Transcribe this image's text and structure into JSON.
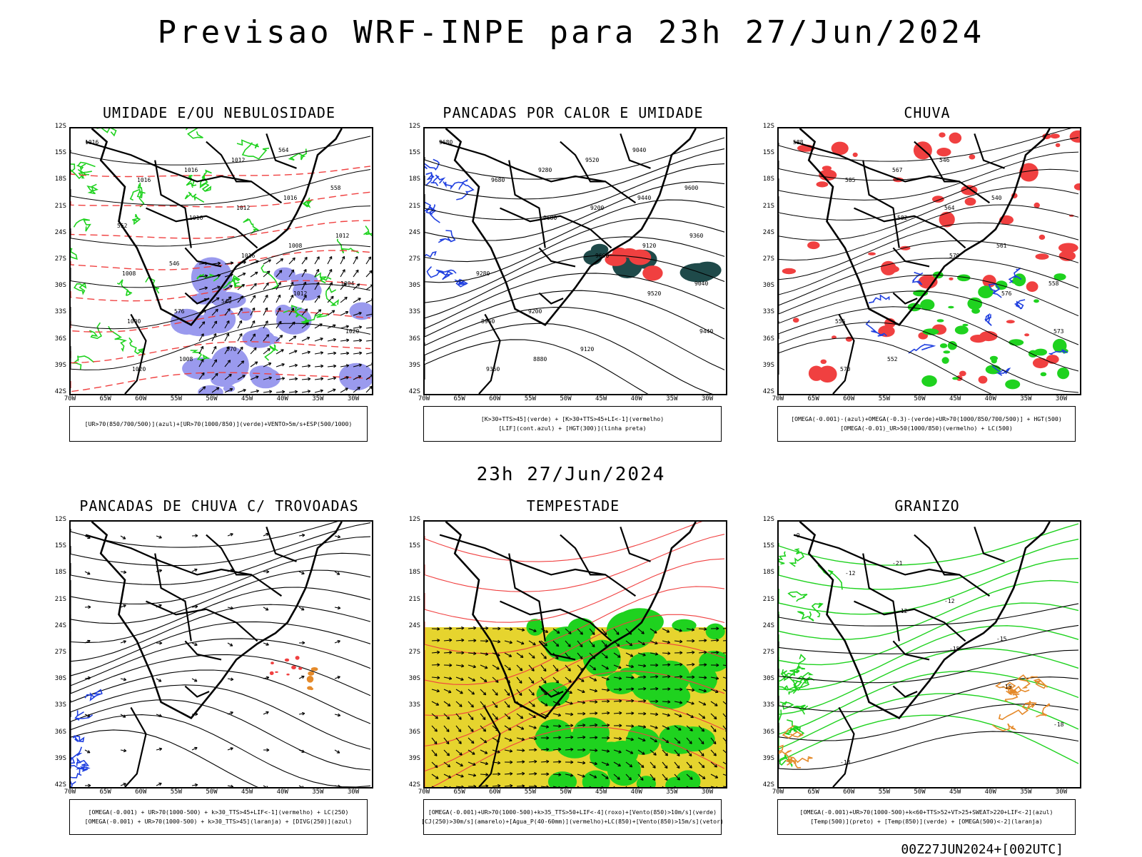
{
  "page": {
    "title": "Previsao WRF-INPE  para 23h 27/Jun/2024",
    "mid_time": "23h 27/Jun/2024",
    "footer": "00Z27JUN2024+[002UTC]"
  },
  "axes": {
    "lat_labels": [
      "12S",
      "15S",
      "18S",
      "21S",
      "24S",
      "27S",
      "30S",
      "33S",
      "36S",
      "39S",
      "42S"
    ],
    "lon_labels": [
      "70W",
      "65W",
      "60W",
      "55W",
      "50W",
      "45W",
      "40W",
      "35W",
      "30W"
    ]
  },
  "panels": [
    {
      "title": "UMIDADE E/OU NEBULOSIDADE",
      "legend": [
        "[UR>70(850/700/500)](azul)+[UR>70(1000/850)](verde)+VENTO>5m/s+ESP(500/1000)"
      ],
      "contour_labels": [
        "1016",
        "1016",
        "1016",
        "1016",
        "1012",
        "1020",
        "1020",
        "1016",
        "1012",
        "1008",
        "1004",
        "1000",
        "1008",
        "1012",
        "1016",
        "1012",
        "1008",
        "576",
        "570",
        "564",
        "558",
        "552",
        "546",
        "540"
      ]
    },
    {
      "title": "PANCADAS POR CALOR E UMIDADE",
      "legend": [
        "[K>30+TTS>45](verde) + [K>30+TTS>45+LI<-1](vermelho)",
        "[LIF](cont.azul) + [HGT(300)](linha preta)"
      ],
      "contour_labels": [
        "9680",
        "9680",
        "9680",
        "9600",
        "9520",
        "9440",
        "9360",
        "9280",
        "9200",
        "9120",
        "9040",
        "8960",
        "8880",
        "9520",
        "9440",
        "9360",
        "9280",
        "9200",
        "9120",
        "9040",
        "9600"
      ]
    },
    {
      "title": "CHUVA",
      "legend": [
        "[OMEGA(-0.001)-(azul)+OMEGA(-0.3)-(verde)+UR>70(1000/850/700/500)] + HGT(500)",
        "[OMEGA(-0.01)_UR>50(1000/850)(vermelho) + LC(500)"
      ],
      "contour_labels": [
        "588",
        "585",
        "582",
        "579",
        "576",
        "573",
        "570",
        "567",
        "564",
        "561",
        "558",
        "555",
        "552",
        "546",
        "540"
      ]
    },
    {
      "title": "PANCADAS DE CHUVA C/ TROVOADAS",
      "legend": [
        "[OMEGA(-0.001) + UR>70(1000-500) + k>30_TTS>45+LIF<-1](vermelho) + LC(250)",
        "[OMEGA(-0.001) + UR>70(1000-500) + k>30_TTS>45](laranja) + [DIVG(250)](azul)"
      ],
      "contour_labels": []
    },
    {
      "title": "TEMPESTADE",
      "legend": [
        "[OMEGA(-0.001)+UR>70(1000-500)+k>35_TTS>50+LIF<-4](roxo)+[Vento(850)>10m/s](verde)",
        "[CJ(250)>30m/s](amarelo)+[Agua_P(40-60mm)](vermelho)+LC(850)+[Vento(850)>15m/s](vetor)"
      ],
      "contour_labels": []
    },
    {
      "title": "GRANIZO",
      "legend": [
        "[OMEGA(-0.001)+UR>70(1000-500)+k<60+TTS>52+VT>25+SWEAT>220+LIF<-2](azul)",
        "[Temp(500)](preto) + [Temp(850)](verde) + [OMEGA(500)<-2](laranja)"
      ],
      "contour_labels": [
        "-9",
        "-12",
        "-12",
        "-15",
        "-15",
        "-18",
        "-18",
        "-21",
        "-12",
        "-15"
      ]
    }
  ],
  "colors": {
    "humidity_blue": "#9a9aee",
    "green": "#1fd21f",
    "red": "#f04040",
    "yellow": "#e6d42e",
    "dark_teal": "#1f4a4a",
    "orange": "#e58a2a",
    "blue_contour": "#2040e0"
  }
}
